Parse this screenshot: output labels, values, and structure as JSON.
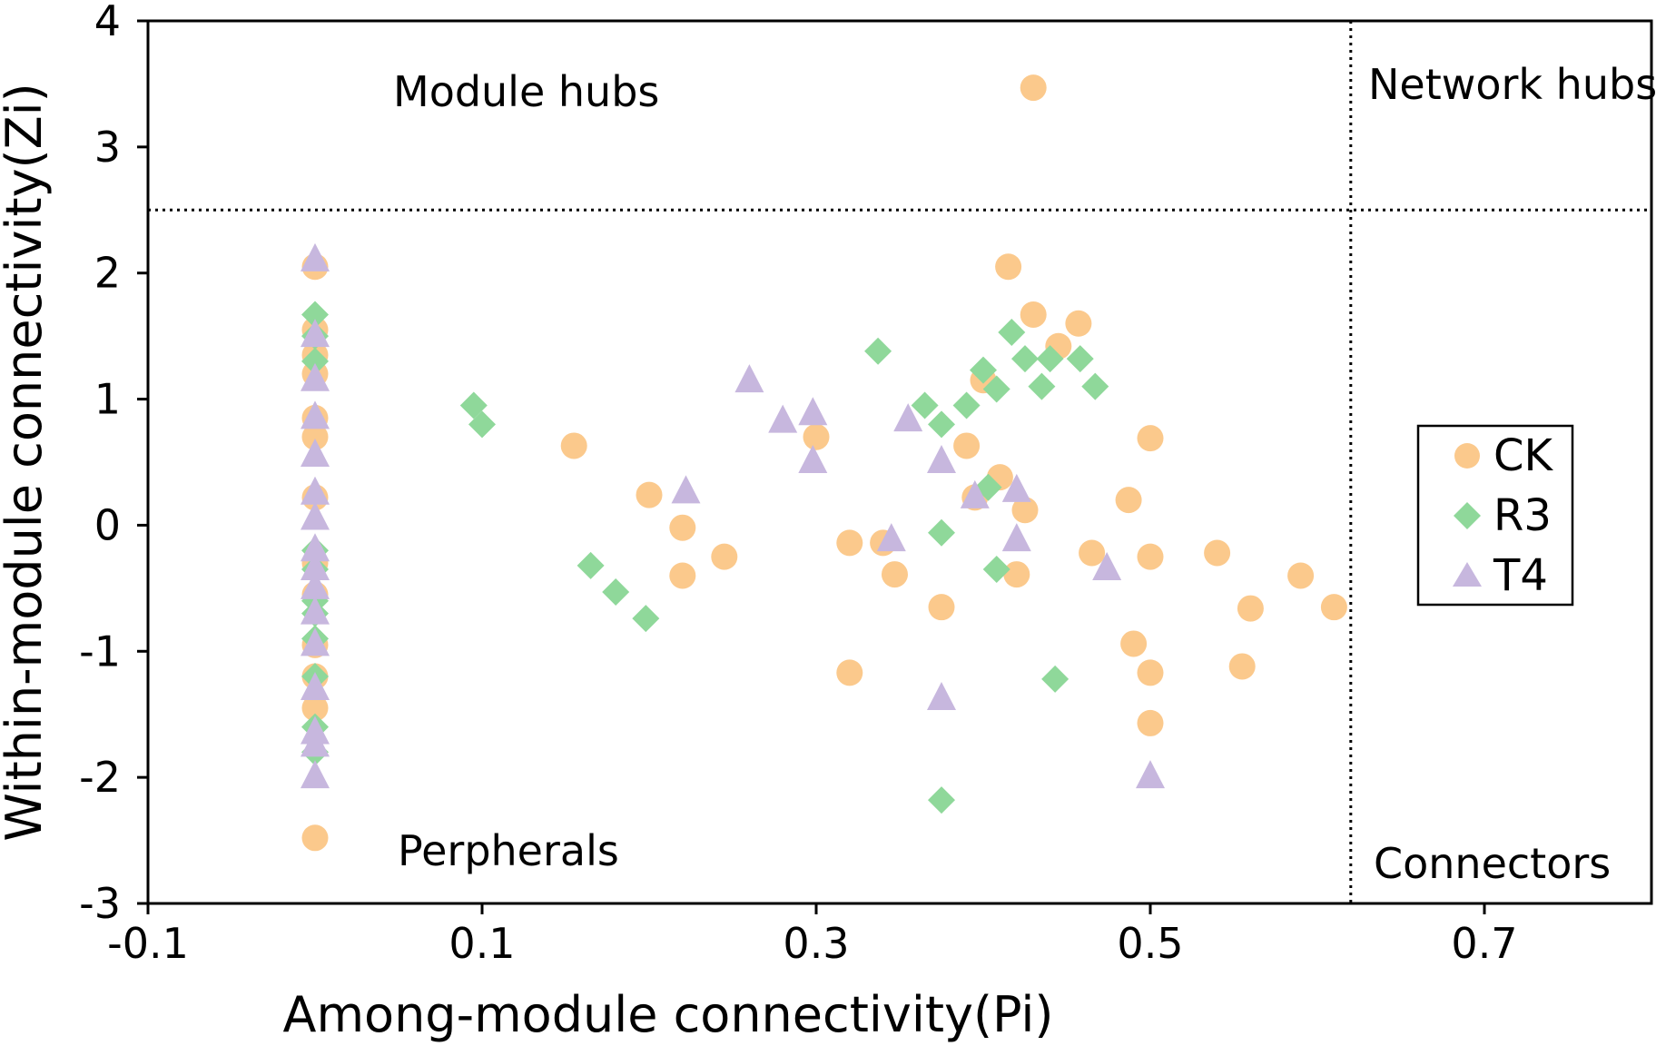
{
  "chart_data": {
    "type": "scatter",
    "xlabel": "Among-module connectivity(Pi)",
    "ylabel": "Within-module connectivity(Zi)",
    "xlim": [
      -0.1,
      0.8
    ],
    "ylim": [
      -3,
      4
    ],
    "x_ticks": [
      -0.1,
      0.1,
      0.3,
      0.5,
      0.7
    ],
    "x_tick_labels": [
      "-0.1",
      "0.1",
      "0.3",
      "0.5",
      "0.7"
    ],
    "y_ticks": [
      -3,
      -2,
      -1,
      0,
      1,
      2,
      3,
      4
    ],
    "y_tick_labels": [
      "-3",
      "-2",
      "-1",
      "0",
      "1",
      "2",
      "3",
      "4"
    ],
    "threshold_lines": {
      "pi": 0.62,
      "zi": 2.5
    },
    "annotations": {
      "top_left": "Module hubs",
      "top_right": "Network hubs",
      "bottom_left": "Perpherals",
      "bottom_right": "Connectors"
    },
    "legend_position": "right",
    "series": [
      {
        "name": "CK",
        "marker": "circle",
        "color": "#FBC98C",
        "points": [
          [
            0.0,
            2.05
          ],
          [
            0.0,
            1.55
          ],
          [
            0.0,
            1.35
          ],
          [
            0.0,
            1.2
          ],
          [
            0.0,
            0.85
          ],
          [
            0.0,
            0.7
          ],
          [
            0.0,
            0.22
          ],
          [
            0.0,
            -0.3
          ],
          [
            0.0,
            -0.55
          ],
          [
            0.0,
            -0.95
          ],
          [
            0.0,
            -1.2
          ],
          [
            0.0,
            -1.45
          ],
          [
            0.0,
            -2.48
          ],
          [
            0.43,
            3.47
          ],
          [
            0.155,
            0.63
          ],
          [
            0.2,
            0.24
          ],
          [
            0.22,
            -0.02
          ],
          [
            0.22,
            -0.4
          ],
          [
            0.245,
            -0.25
          ],
          [
            0.3,
            0.7
          ],
          [
            0.32,
            -0.14
          ],
          [
            0.32,
            -1.17
          ],
          [
            0.34,
            -0.14
          ],
          [
            0.347,
            -0.39
          ],
          [
            0.375,
            -0.65
          ],
          [
            0.39,
            0.63
          ],
          [
            0.395,
            0.22
          ],
          [
            0.4,
            1.15
          ],
          [
            0.41,
            0.38
          ],
          [
            0.415,
            2.05
          ],
          [
            0.42,
            -0.39
          ],
          [
            0.425,
            0.12
          ],
          [
            0.43,
            1.67
          ],
          [
            0.445,
            1.42
          ],
          [
            0.457,
            1.6
          ],
          [
            0.465,
            -0.22
          ],
          [
            0.487,
            0.2
          ],
          [
            0.49,
            -0.94
          ],
          [
            0.5,
            0.69
          ],
          [
            0.5,
            -0.25
          ],
          [
            0.5,
            -1.17
          ],
          [
            0.5,
            -1.57
          ],
          [
            0.54,
            -0.22
          ],
          [
            0.555,
            -1.12
          ],
          [
            0.56,
            -0.66
          ],
          [
            0.59,
            -0.4
          ],
          [
            0.61,
            -0.65
          ]
        ]
      },
      {
        "name": "R3",
        "marker": "diamond",
        "color": "#8FD89A",
        "points": [
          [
            0.0,
            1.67
          ],
          [
            0.0,
            1.5
          ],
          [
            0.0,
            1.3
          ],
          [
            0.0,
            -0.2
          ],
          [
            0.0,
            -0.35
          ],
          [
            0.0,
            -0.6
          ],
          [
            0.0,
            -0.7
          ],
          [
            0.0,
            -0.9
          ],
          [
            0.0,
            -1.2
          ],
          [
            0.0,
            -1.6
          ],
          [
            0.0,
            -1.8
          ],
          [
            0.095,
            0.95
          ],
          [
            0.1,
            0.8
          ],
          [
            0.165,
            -0.32
          ],
          [
            0.18,
            -0.53
          ],
          [
            0.198,
            -0.74
          ],
          [
            0.337,
            1.38
          ],
          [
            0.365,
            0.95
          ],
          [
            0.375,
            0.8
          ],
          [
            0.375,
            -0.06
          ],
          [
            0.375,
            -2.18
          ],
          [
            0.39,
            0.95
          ],
          [
            0.4,
            1.23
          ],
          [
            0.403,
            0.3
          ],
          [
            0.408,
            1.08
          ],
          [
            0.408,
            -0.35
          ],
          [
            0.417,
            1.53
          ],
          [
            0.425,
            1.32
          ],
          [
            0.435,
            1.1
          ],
          [
            0.44,
            1.32
          ],
          [
            0.443,
            -1.22
          ],
          [
            0.458,
            1.32
          ],
          [
            0.467,
            1.1
          ]
        ]
      },
      {
        "name": "T4",
        "marker": "triangle",
        "color": "#C7B7DE",
        "points": [
          [
            0.0,
            2.1
          ],
          [
            0.0,
            1.5
          ],
          [
            0.0,
            1.15
          ],
          [
            0.0,
            0.85
          ],
          [
            0.0,
            0.55
          ],
          [
            0.0,
            0.25
          ],
          [
            0.0,
            0.05
          ],
          [
            0.0,
            -0.2
          ],
          [
            0.0,
            -0.35
          ],
          [
            0.0,
            -0.5
          ],
          [
            0.0,
            -0.7
          ],
          [
            0.0,
            -0.95
          ],
          [
            0.0,
            -1.3
          ],
          [
            0.0,
            -1.65
          ],
          [
            0.0,
            -1.75
          ],
          [
            0.0,
            -2.0
          ],
          [
            0.222,
            0.26
          ],
          [
            0.26,
            1.14
          ],
          [
            0.28,
            0.82
          ],
          [
            0.298,
            0.88
          ],
          [
            0.298,
            0.5
          ],
          [
            0.345,
            -0.12
          ],
          [
            0.355,
            0.83
          ],
          [
            0.375,
            0.5
          ],
          [
            0.375,
            -1.38
          ],
          [
            0.395,
            0.22
          ],
          [
            0.42,
            0.27
          ],
          [
            0.42,
            -0.12
          ],
          [
            0.474,
            -0.35
          ],
          [
            0.5,
            -2.0
          ]
        ]
      }
    ]
  }
}
